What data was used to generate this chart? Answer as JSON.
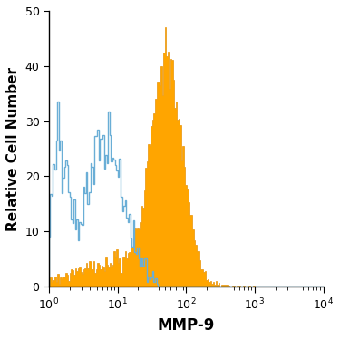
{
  "title": "",
  "xlabel": "MMP-9",
  "ylabel": "Relative Cell Number",
  "xlim": [
    1,
    10000
  ],
  "ylim": [
    0,
    50
  ],
  "yticks": [
    0,
    10,
    20,
    30,
    40,
    50
  ],
  "orange_color": "#FFA500",
  "blue_color": "#6aaed6",
  "orange_edge_color": "#E8940A",
  "background_color": "#FFFFFF",
  "xlabel_fontsize": 12,
  "ylabel_fontsize": 11,
  "tick_fontsize": 9,
  "seed": 77,
  "blue_peak_height": 30,
  "orange_peak_height": 47
}
